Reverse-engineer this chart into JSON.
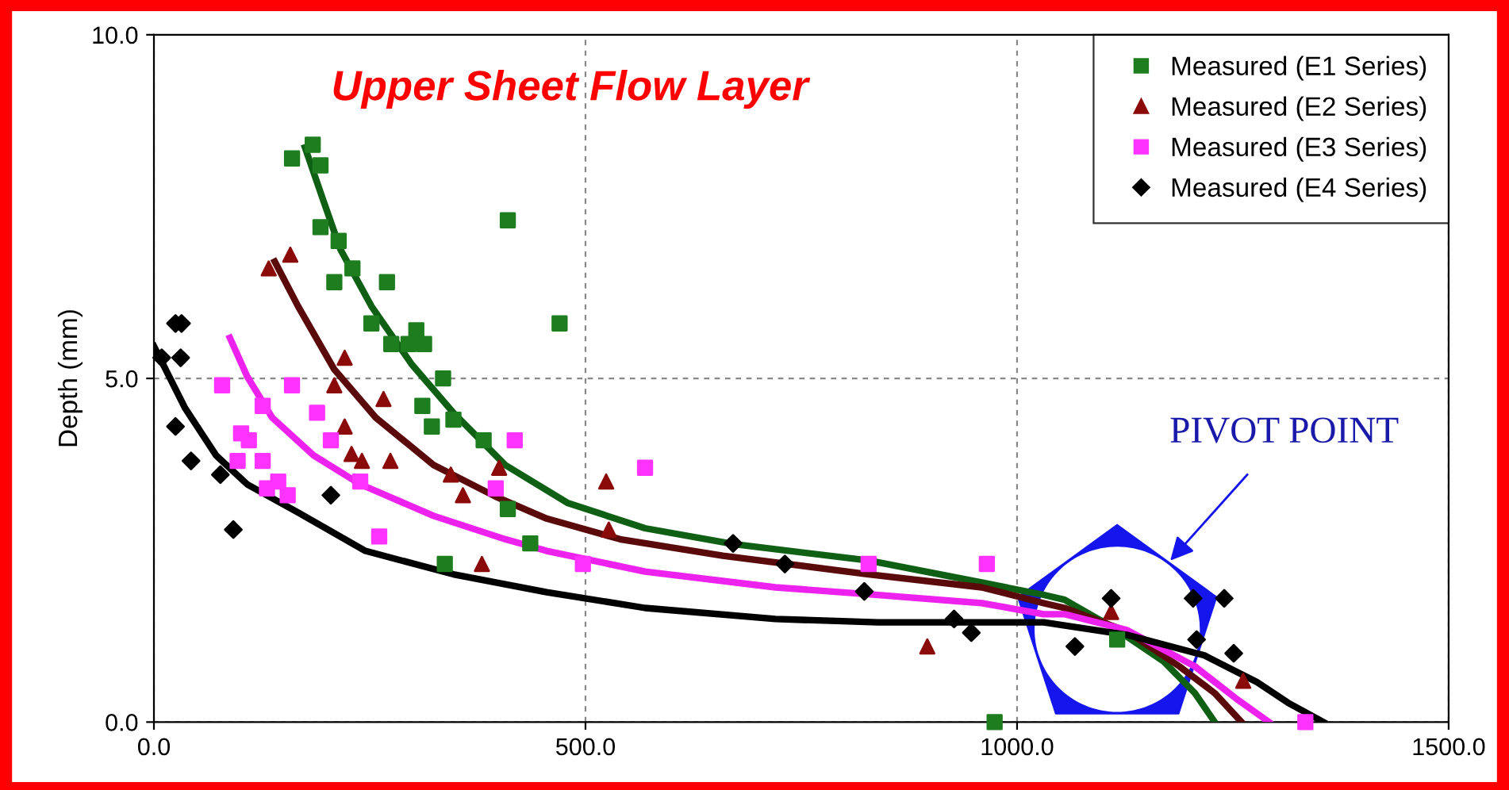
{
  "chart_data": {
    "type": "scatter",
    "title": "Upper Sheet Flow Layer",
    "ylabel": "Depth (mm)",
    "xlim": [
      0,
      1500
    ],
    "ylim": [
      0,
      10
    ],
    "xticks": [
      {
        "value": 0,
        "label": "0.0"
      },
      {
        "value": 500,
        "label": "500.0"
      },
      {
        "value": 1000,
        "label": "1000.0"
      },
      {
        "value": 1500,
        "label": "1500.0"
      }
    ],
    "yticks": [
      {
        "value": 0,
        "label": "0.0"
      },
      {
        "value": 5,
        "label": "5.0"
      },
      {
        "value": 10,
        "label": "10.0"
      }
    ],
    "grid": true,
    "legend": "top right",
    "annotations": [
      "PIVOT POINT"
    ],
    "series": [
      {
        "name": "Measured (E1 Series)",
        "type": "scatter",
        "marker": "square",
        "color": "#1e7d1e",
        "x": [
          160,
          184,
          193,
          193,
          214,
          209,
          230,
          270,
          252,
          275,
          295,
          304,
          313,
          335,
          311,
          322,
          347,
          382,
          410,
          410,
          436,
          337,
          470,
          974,
          1116
        ],
        "values": [
          8.2,
          8.4,
          8.1,
          7.2,
          7.0,
          6.4,
          6.6,
          6.4,
          5.8,
          5.5,
          5.5,
          5.7,
          5.5,
          5.0,
          4.6,
          4.3,
          4.4,
          4.1,
          7.3,
          3.1,
          2.6,
          2.3,
          5.8,
          0,
          1.2
        ]
      },
      {
        "name": "Measured (E2 Series)",
        "type": "scatter",
        "marker": "triangle",
        "color": "#8b0a0a",
        "x": [
          133,
          158,
          221,
          209,
          266,
          221,
          229,
          241,
          274,
          344,
          358,
          400,
          380,
          524,
          527,
          896,
          1109,
          1262
        ],
        "values": [
          6.6,
          6.8,
          5.3,
          4.9,
          4.7,
          4.3,
          3.9,
          3.8,
          3.8,
          3.6,
          3.3,
          3.7,
          2.3,
          3.5,
          2.8,
          1.1,
          1.6,
          0.6
        ]
      },
      {
        "name": "Measured (E3 Series)",
        "type": "scatter",
        "marker": "square",
        "color": "#ff33ff",
        "x": [
          79,
          160,
          126,
          101,
          110,
          97,
          126,
          144,
          131,
          155,
          189,
          205,
          239,
          261,
          418,
          396,
          569,
          497,
          828,
          965,
          1334
        ],
        "values": [
          4.9,
          4.9,
          4.6,
          4.2,
          4.1,
          3.8,
          3.8,
          3.5,
          3.4,
          3.3,
          4.5,
          4.1,
          3.5,
          2.7,
          4.1,
          3.4,
          3.7,
          2.3,
          2.3,
          2.3,
          0
        ]
      },
      {
        "name": "Measured (E4 Series)",
        "type": "scatter",
        "marker": "diamond",
        "color": "#000000",
        "x": [
          25,
          32,
          9,
          31,
          25,
          43,
          77,
          92,
          205,
          671,
          731,
          823,
          927,
          947,
          1109,
          1067,
          1204,
          1240,
          1208,
          1251
        ],
        "values": [
          5.8,
          5.8,
          5.3,
          5.3,
          4.3,
          3.8,
          3.6,
          2.8,
          3.3,
          2.6,
          2.3,
          1.9,
          1.5,
          1.3,
          1.8,
          1.1,
          1.8,
          1.8,
          1.2,
          1.0
        ]
      },
      {
        "type": "line",
        "color": "#0f5f14",
        "x": [
          175,
          194,
          216,
          252,
          299,
          347,
          407,
          479,
          569,
          671,
          828,
          959,
          1031,
          1055,
          1116,
          1170,
          1206,
          1229
        ],
        "values": [
          8.36,
          7.67,
          6.88,
          6.05,
          5.2,
          4.5,
          3.74,
          3.19,
          2.82,
          2.59,
          2.35,
          2.03,
          1.85,
          1.78,
          1.34,
          0.88,
          0.42,
          0
        ]
      },
      {
        "type": "line",
        "color": "#5a0a0a",
        "x": [
          140,
          167,
          209,
          257,
          324,
          396,
          455,
          540,
          659,
          828,
          959,
          1031,
          1055,
          1127,
          1188,
          1229,
          1260
        ],
        "values": [
          6.7,
          6.05,
          5.13,
          4.43,
          3.74,
          3.28,
          2.96,
          2.66,
          2.42,
          2.15,
          1.96,
          1.73,
          1.66,
          1.32,
          0.81,
          0.42,
          0
        ]
      },
      {
        "type": "line",
        "color": "#ee22ee",
        "x": [
          88,
          108,
          137,
          185,
          239,
          324,
          407,
          455,
          569,
          720,
          839,
          959,
          1031,
          1055,
          1127,
          1206,
          1253,
          1292
        ],
        "values": [
          5.59,
          5.03,
          4.43,
          3.88,
          3.46,
          3.0,
          2.66,
          2.49,
          2.19,
          1.96,
          1.85,
          1.73,
          1.57,
          1.57,
          1.34,
          0.81,
          0.35,
          0
        ]
      },
      {
        "type": "line",
        "color": "#000000",
        "x": [
          0,
          36,
          72,
          108,
          167,
          245,
          347,
          455,
          569,
          720,
          839,
          1031,
          1127,
          1217,
          1278,
          1314,
          1355
        ],
        "values": [
          5.47,
          4.57,
          3.88,
          3.46,
          3.05,
          2.49,
          2.15,
          1.89,
          1.66,
          1.5,
          1.45,
          1.45,
          1.27,
          0.97,
          0.58,
          0.28,
          0
        ]
      }
    ]
  }
}
